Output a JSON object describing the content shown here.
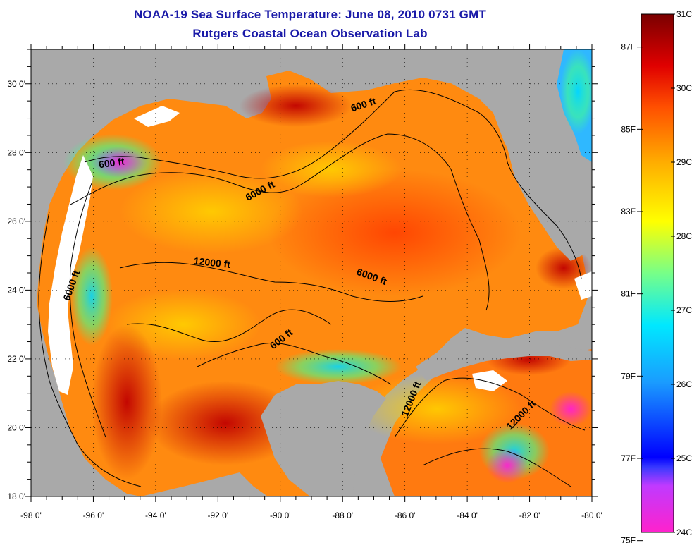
{
  "title_line1": "NOAA-19 Sea Surface Temperature:  June 08, 2010 0731 GMT",
  "title_line2": "Rutgers Coastal Ocean Observation Lab",
  "map": {
    "lon_range": [
      -98,
      -80
    ],
    "lat_range": [
      18,
      31
    ],
    "x_ticks": [
      {
        "value": -98,
        "label": "-98 0'"
      },
      {
        "value": -96,
        "label": "-96 0'"
      },
      {
        "value": -94,
        "label": "-94 0'"
      },
      {
        "value": -92,
        "label": "-92 0'"
      },
      {
        "value": -90,
        "label": "-90 0'"
      },
      {
        "value": -88,
        "label": "-88 0'"
      },
      {
        "value": -86,
        "label": "-86 0'"
      },
      {
        "value": -84,
        "label": "-84 0'"
      },
      {
        "value": -82,
        "label": "-82 0'"
      },
      {
        "value": -80,
        "label": "-80 0'"
      }
    ],
    "y_ticks": [
      {
        "value": 18,
        "label": "18 0'"
      },
      {
        "value": 20,
        "label": "20 0'"
      },
      {
        "value": 22,
        "label": "22 0'"
      },
      {
        "value": 24,
        "label": "24 0'"
      },
      {
        "value": 26,
        "label": "26 0'"
      },
      {
        "value": 28,
        "label": "28 0'"
      },
      {
        "value": 30,
        "label": "30 0'"
      }
    ],
    "contour_labels": [
      {
        "text": "600 ft",
        "lon": -87.3,
        "lat": 29.3,
        "rotate": -18
      },
      {
        "text": "600 ft",
        "lon": -95.4,
        "lat": 27.6,
        "rotate": -8
      },
      {
        "text": "6000 ft",
        "lon": -90.6,
        "lat": 26.8,
        "rotate": -28
      },
      {
        "text": "12000 ft",
        "lon": -92.2,
        "lat": 24.7,
        "rotate": 6
      },
      {
        "text": "6000 ft",
        "lon": -87.1,
        "lat": 24.3,
        "rotate": 20
      },
      {
        "text": "6000 ft",
        "lon": -96.6,
        "lat": 24.1,
        "rotate": -70
      },
      {
        "text": "600 ft",
        "lon": -89.9,
        "lat": 22.5,
        "rotate": -38
      },
      {
        "text": "12000 ft",
        "lon": -85.7,
        "lat": 20.8,
        "rotate": -68
      },
      {
        "text": "12000 ft",
        "lon": -82.2,
        "lat": 20.3,
        "rotate": -45
      }
    ]
  },
  "colorbar": {
    "colors": [
      "#ff22cc",
      "#6a2aff",
      "#0000ff",
      "#1e90ff",
      "#00e5ff",
      "#7dff80",
      "#ffff00",
      "#ffb000",
      "#ff5a00",
      "#e80000",
      "#7a0000"
    ],
    "c_labels": [
      {
        "value": 24,
        "label": "24C"
      },
      {
        "value": 25,
        "label": "25C"
      },
      {
        "value": 26,
        "label": "26C"
      },
      {
        "value": 27,
        "label": "27C"
      },
      {
        "value": 28,
        "label": "28C"
      },
      {
        "value": 29,
        "label": "29C"
      },
      {
        "value": 30,
        "label": "30C"
      },
      {
        "value": 31,
        "label": "31C"
      }
    ],
    "f_labels": [
      {
        "value": 75,
        "label": "75F"
      },
      {
        "value": 77,
        "label": "77F"
      },
      {
        "value": 79,
        "label": "79F"
      },
      {
        "value": 81,
        "label": "81F"
      },
      {
        "value": 83,
        "label": "83F"
      },
      {
        "value": 85,
        "label": "85F"
      },
      {
        "value": 87,
        "label": "87F"
      }
    ]
  }
}
